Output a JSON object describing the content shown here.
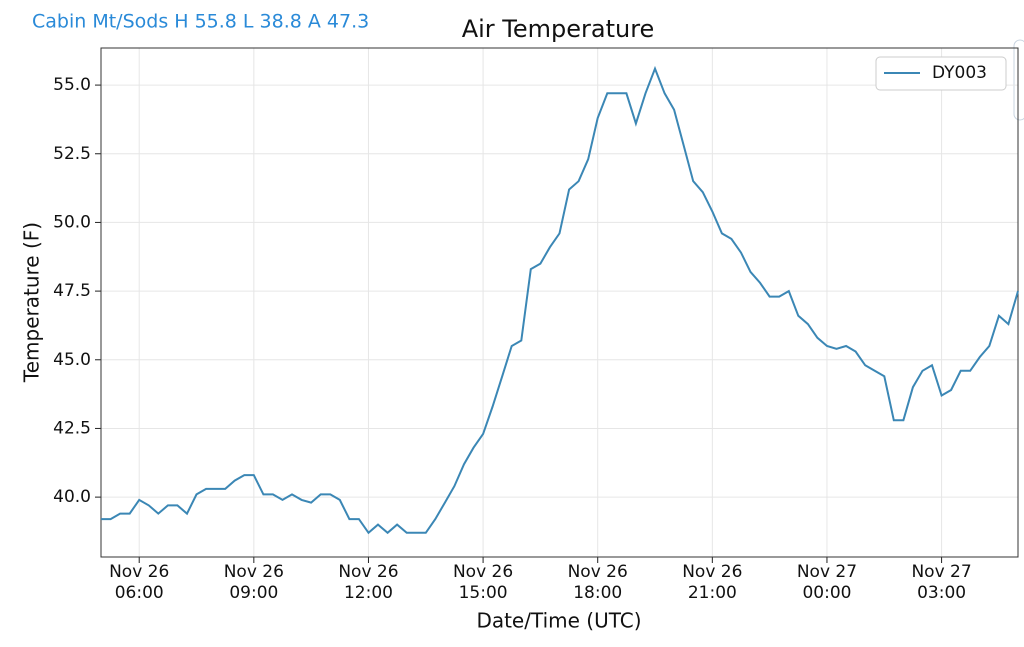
{
  "header": "Cabin Mt/Sods H 55.8 L 38.8 A 47.3",
  "chart_data": {
    "type": "line",
    "title": "Air Temperature",
    "x_label": "Date/Time (UTC)",
    "y_label": "Temperature (F)",
    "x": [
      "Nov 26 05:00",
      "Nov 26 05:15",
      "Nov 26 05:30",
      "Nov 26 05:45",
      "Nov 26 06:00",
      "Nov 26 06:15",
      "Nov 26 06:30",
      "Nov 26 06:45",
      "Nov 26 07:00",
      "Nov 26 07:15",
      "Nov 26 07:30",
      "Nov 26 07:45",
      "Nov 26 08:00",
      "Nov 26 08:15",
      "Nov 26 08:30",
      "Nov 26 08:45",
      "Nov 26 09:00",
      "Nov 26 09:15",
      "Nov 26 09:30",
      "Nov 26 09:45",
      "Nov 26 10:00",
      "Nov 26 10:15",
      "Nov 26 10:30",
      "Nov 26 10:45",
      "Nov 26 11:00",
      "Nov 26 11:15",
      "Nov 26 11:30",
      "Nov 26 11:45",
      "Nov 26 12:00",
      "Nov 26 12:15",
      "Nov 26 12:30",
      "Nov 26 12:45",
      "Nov 26 13:00",
      "Nov 26 13:15",
      "Nov 26 13:30",
      "Nov 26 13:45",
      "Nov 26 14:00",
      "Nov 26 14:15",
      "Nov 26 14:30",
      "Nov 26 14:45",
      "Nov 26 15:00",
      "Nov 26 15:15",
      "Nov 26 15:30",
      "Nov 26 15:45",
      "Nov 26 16:00",
      "Nov 26 16:15",
      "Nov 26 16:30",
      "Nov 26 16:45",
      "Nov 26 17:00",
      "Nov 26 17:15",
      "Nov 26 17:30",
      "Nov 26 17:45",
      "Nov 26 18:00",
      "Nov 26 18:15",
      "Nov 26 18:30",
      "Nov 26 18:45",
      "Nov 26 19:00",
      "Nov 26 19:15",
      "Nov 26 19:30",
      "Nov 26 19:45",
      "Nov 26 20:00",
      "Nov 26 20:15",
      "Nov 26 20:30",
      "Nov 26 20:45",
      "Nov 26 21:00",
      "Nov 26 21:15",
      "Nov 26 21:30",
      "Nov 26 21:45",
      "Nov 26 22:00",
      "Nov 26 22:15",
      "Nov 26 22:30",
      "Nov 26 22:45",
      "Nov 26 23:00",
      "Nov 26 23:15",
      "Nov 26 23:30",
      "Nov 26 23:45",
      "Nov 27 00:00",
      "Nov 27 00:15",
      "Nov 27 00:30",
      "Nov 27 00:45",
      "Nov 27 01:00",
      "Nov 27 01:15",
      "Nov 27 01:30",
      "Nov 27 01:45",
      "Nov 27 02:00",
      "Nov 27 02:15",
      "Nov 27 02:30",
      "Nov 27 02:45",
      "Nov 27 03:00",
      "Nov 27 03:15",
      "Nov 27 03:30",
      "Nov 27 03:45",
      "Nov 27 04:00",
      "Nov 27 04:15",
      "Nov 27 04:30",
      "Nov 27 04:45",
      "Nov 27 05:00"
    ],
    "series": [
      {
        "name": "DY003",
        "color": "#3b87b5",
        "values": [
          39.2,
          39.2,
          39.4,
          39.4,
          39.9,
          39.7,
          39.4,
          39.7,
          39.7,
          39.4,
          40.1,
          40.3,
          40.3,
          40.3,
          40.6,
          40.8,
          40.8,
          40.1,
          40.1,
          39.9,
          40.1,
          39.9,
          39.8,
          40.1,
          40.1,
          39.9,
          39.2,
          39.2,
          38.7,
          39.0,
          38.7,
          39.0,
          38.7,
          38.7,
          38.7,
          39.2,
          39.8,
          40.4,
          41.2,
          41.8,
          42.3,
          43.3,
          44.4,
          45.5,
          45.7,
          48.3,
          48.5,
          49.1,
          49.6,
          51.2,
          51.5,
          52.3,
          53.8,
          54.7,
          54.7,
          54.7,
          53.6,
          54.7,
          55.6,
          54.7,
          54.1,
          52.8,
          51.5,
          51.1,
          50.4,
          49.6,
          49.4,
          48.9,
          48.2,
          47.8,
          47.3,
          47.3,
          47.5,
          46.6,
          46.3,
          45.8,
          45.5,
          45.4,
          45.5,
          45.3,
          44.8,
          44.6,
          44.4,
          42.8,
          42.8,
          44.0,
          44.6,
          44.8,
          43.7,
          43.9,
          44.6,
          44.6,
          45.1,
          45.5,
          46.6,
          46.3,
          47.5
        ]
      }
    ],
    "xlim": [
      "Nov 26 05:00",
      "Nov 27 05:00"
    ],
    "xticks": [
      "Nov 26 06:00",
      "Nov 26 09:00",
      "Nov 26 12:00",
      "Nov 26 15:00",
      "Nov 26 18:00",
      "Nov 26 21:00",
      "Nov 27 00:00",
      "Nov 27 03:00"
    ],
    "ylim": [
      37.82,
      56.35
    ],
    "yticks": [
      {
        "value": 40,
        "label": "40.0"
      },
      42.5,
      {
        "value": 45,
        "label": "45.0"
      },
      47.5,
      {
        "value": 50,
        "label": "50.0"
      },
      52.5,
      {
        "value": 55,
        "label": "55.0"
      }
    ],
    "grid": true,
    "legend": "upper right"
  }
}
